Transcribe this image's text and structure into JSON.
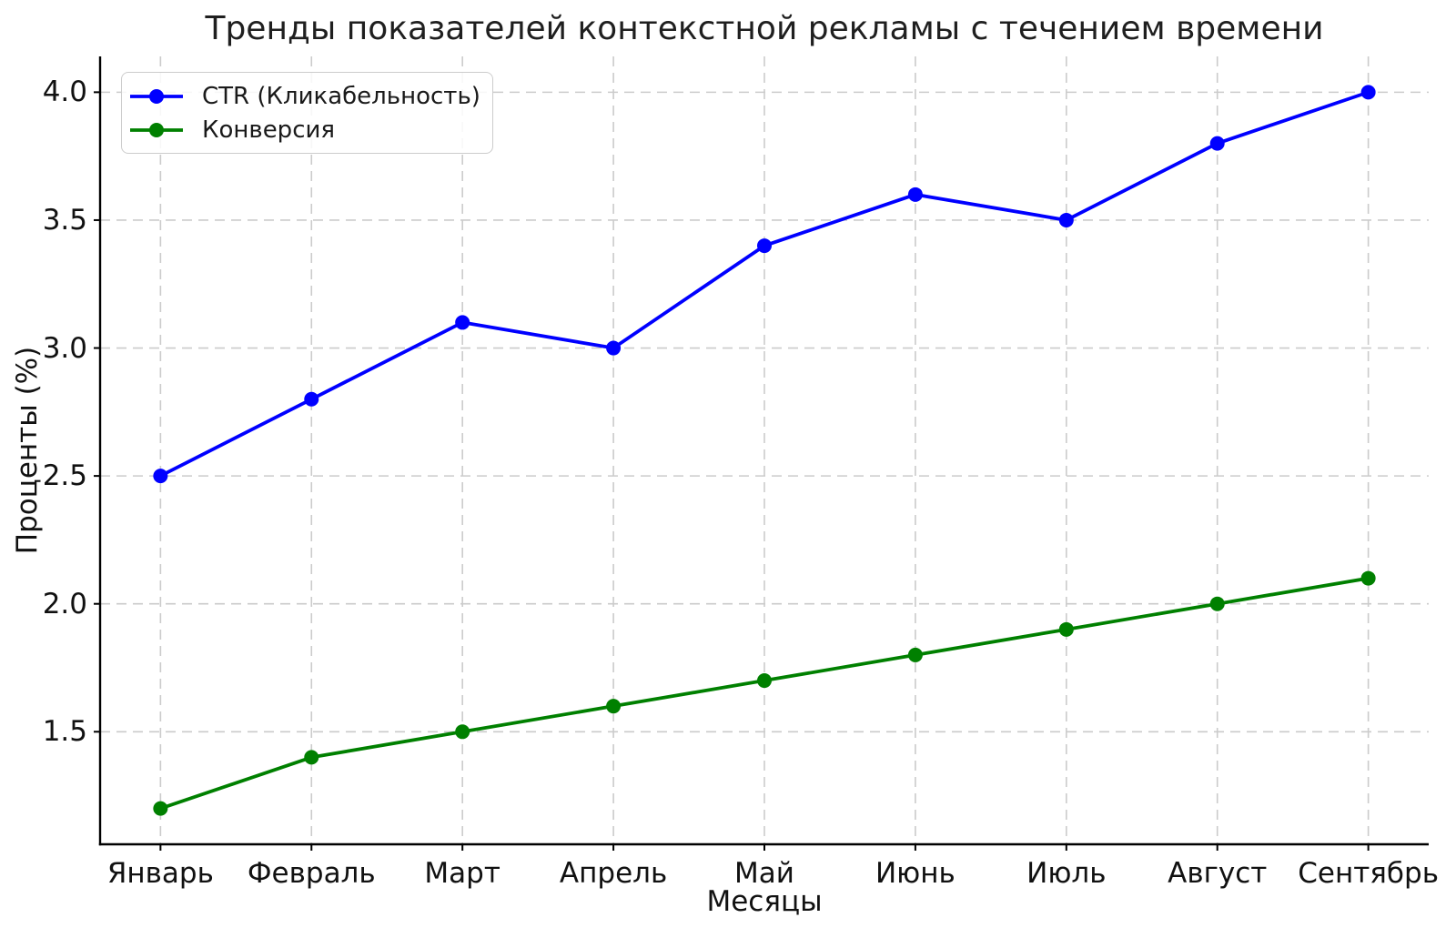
{
  "chart_data": {
    "type": "line",
    "title": "Тренды показателей контекстной рекламы с течением времени",
    "xlabel": "Месяцы",
    "ylabel": "Проценты (%)",
    "categories": [
      "Январь",
      "Февраль",
      "Март",
      "Апрель",
      "Май",
      "Июнь",
      "Июль",
      "Август",
      "Сентябрь"
    ],
    "series": [
      {
        "name": "CTR (Кликабельность)",
        "color": "#0000ff",
        "values": [
          2.5,
          2.8,
          3.1,
          3.0,
          3.4,
          3.6,
          3.5,
          3.8,
          4.0
        ]
      },
      {
        "name": "Конверсия",
        "color": "#008000",
        "values": [
          1.2,
          1.4,
          1.5,
          1.6,
          1.7,
          1.8,
          1.9,
          2.0,
          2.1
        ]
      }
    ],
    "y_ticks": [
      "1.5",
      "2.0",
      "2.5",
      "3.0",
      "3.5",
      "4.0"
    ],
    "axis": {
      "xlim": [
        -0.4,
        8.4
      ],
      "ylim": [
        1.06,
        4.14
      ]
    },
    "grid": true,
    "legend_position": "upper-left",
    "colors": {
      "background": "#ffffff",
      "grid": "#cbcbcb",
      "spine": "#000000",
      "text": "#1a1a1a"
    }
  }
}
